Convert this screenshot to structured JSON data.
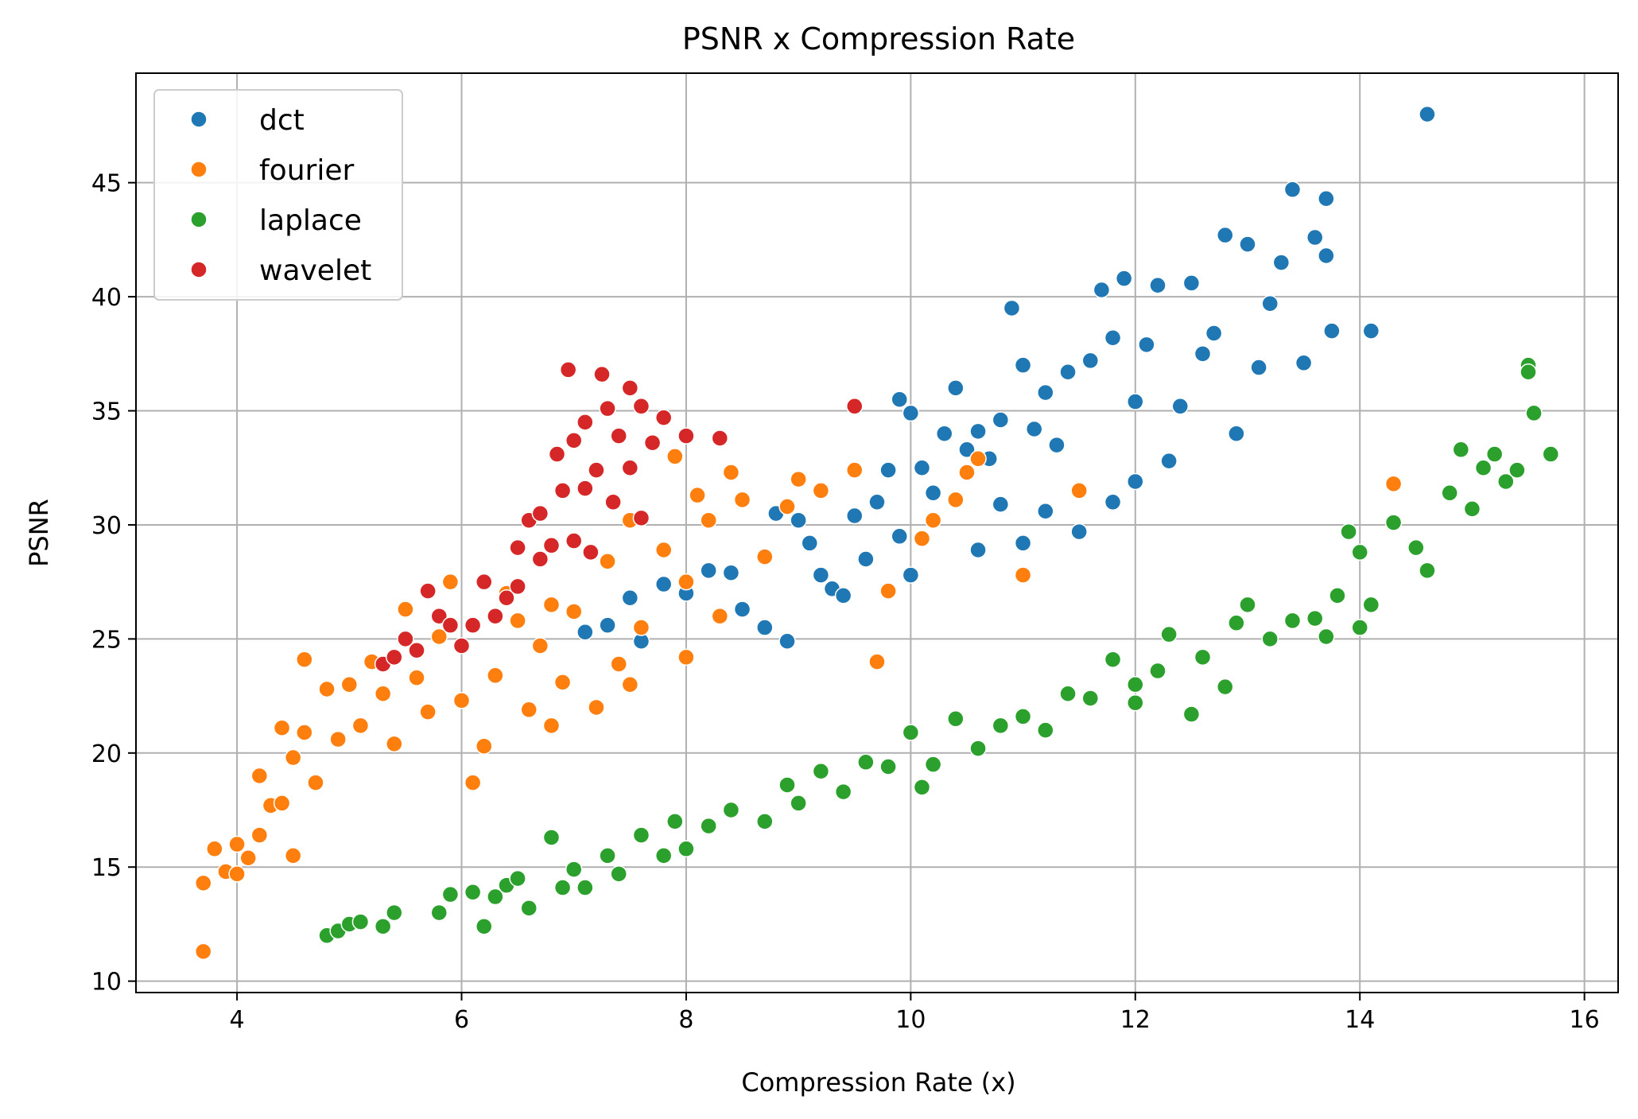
{
  "chart_data": {
    "type": "scatter",
    "title": "PSNR x Compression Rate",
    "xlabel": "Compression Rate (x)",
    "ylabel": "PSNR",
    "xlim": [
      3.1,
      16.3
    ],
    "ylim": [
      9.5,
      49.8
    ],
    "xticks": [
      4,
      6,
      8,
      10,
      12,
      14,
      16
    ],
    "yticks": [
      10,
      15,
      20,
      25,
      30,
      35,
      40,
      45
    ],
    "grid": true,
    "legend_position": "top-left",
    "series": [
      {
        "name": "dct",
        "color": "#1f77b4",
        "points": [
          [
            7.1,
            25.3
          ],
          [
            7.3,
            25.6
          ],
          [
            7.5,
            26.8
          ],
          [
            7.6,
            24.9
          ],
          [
            7.8,
            27.4
          ],
          [
            8.0,
            27.0
          ],
          [
            8.2,
            28.0
          ],
          [
            8.4,
            27.9
          ],
          [
            8.5,
            26.3
          ],
          [
            8.7,
            25.5
          ],
          [
            8.9,
            24.9
          ],
          [
            8.8,
            30.5
          ],
          [
            9.0,
            30.2
          ],
          [
            9.1,
            29.2
          ],
          [
            9.2,
            27.8
          ],
          [
            9.3,
            27.2
          ],
          [
            9.4,
            26.9
          ],
          [
            9.5,
            30.4
          ],
          [
            9.6,
            28.5
          ],
          [
            9.7,
            31.0
          ],
          [
            9.8,
            32.4
          ],
          [
            9.9,
            35.5
          ],
          [
            10.0,
            34.9
          ],
          [
            10.1,
            32.5
          ],
          [
            10.2,
            31.4
          ],
          [
            10.3,
            34.0
          ],
          [
            10.4,
            36.0
          ],
          [
            10.5,
            33.3
          ],
          [
            10.6,
            34.1
          ],
          [
            10.7,
            32.9
          ],
          [
            10.8,
            34.6
          ],
          [
            10.9,
            39.5
          ],
          [
            11.0,
            37.0
          ],
          [
            11.0,
            29.2
          ],
          [
            11.1,
            34.2
          ],
          [
            11.2,
            35.8
          ],
          [
            11.3,
            33.5
          ],
          [
            11.4,
            36.7
          ],
          [
            11.5,
            29.7
          ],
          [
            11.6,
            37.2
          ],
          [
            11.7,
            40.3
          ],
          [
            11.8,
            38.2
          ],
          [
            11.9,
            40.8
          ],
          [
            12.0,
            35.4
          ],
          [
            12.1,
            37.9
          ],
          [
            12.2,
            40.5
          ],
          [
            12.3,
            32.8
          ],
          [
            12.4,
            35.2
          ],
          [
            12.5,
            40.6
          ],
          [
            12.6,
            37.5
          ],
          [
            12.7,
            38.4
          ],
          [
            12.8,
            42.7
          ],
          [
            12.9,
            34.0
          ],
          [
            13.0,
            42.3
          ],
          [
            13.1,
            36.9
          ],
          [
            13.2,
            39.7
          ],
          [
            13.3,
            41.5
          ],
          [
            13.4,
            44.7
          ],
          [
            13.5,
            37.1
          ],
          [
            13.6,
            42.6
          ],
          [
            13.7,
            44.3
          ],
          [
            13.7,
            41.8
          ],
          [
            13.75,
            38.5
          ],
          [
            14.1,
            38.5
          ],
          [
            14.6,
            48.0
          ],
          [
            10.0,
            27.8
          ],
          [
            10.6,
            28.9
          ],
          [
            11.2,
            30.6
          ],
          [
            11.8,
            31.0
          ],
          [
            12.0,
            31.9
          ],
          [
            10.8,
            30.9
          ],
          [
            9.9,
            29.5
          ]
        ]
      },
      {
        "name": "fourier",
        "color": "#ff7f0e",
        "points": [
          [
            3.7,
            11.3
          ],
          [
            3.7,
            14.3
          ],
          [
            3.8,
            15.8
          ],
          [
            3.9,
            14.8
          ],
          [
            4.0,
            16.0
          ],
          [
            4.0,
            14.7
          ],
          [
            4.1,
            15.4
          ],
          [
            4.2,
            16.4
          ],
          [
            4.2,
            19.0
          ],
          [
            4.3,
            17.7
          ],
          [
            4.4,
            17.8
          ],
          [
            4.5,
            15.5
          ],
          [
            4.4,
            21.1
          ],
          [
            4.5,
            19.8
          ],
          [
            4.6,
            20.9
          ],
          [
            4.7,
            18.7
          ],
          [
            4.6,
            24.1
          ],
          [
            4.8,
            22.8
          ],
          [
            4.9,
            20.6
          ],
          [
            5.0,
            23.0
          ],
          [
            5.1,
            21.2
          ],
          [
            5.2,
            24.0
          ],
          [
            5.3,
            22.6
          ],
          [
            5.4,
            20.4
          ],
          [
            5.5,
            26.3
          ],
          [
            5.6,
            23.3
          ],
          [
            5.7,
            21.8
          ],
          [
            5.8,
            25.1
          ],
          [
            5.9,
            27.5
          ],
          [
            6.0,
            22.3
          ],
          [
            6.1,
            18.7
          ],
          [
            6.2,
            20.3
          ],
          [
            6.3,
            23.4
          ],
          [
            6.4,
            27.0
          ],
          [
            6.5,
            25.8
          ],
          [
            6.6,
            21.9
          ],
          [
            6.7,
            24.7
          ],
          [
            6.8,
            21.2
          ],
          [
            6.9,
            23.1
          ],
          [
            7.0,
            26.2
          ],
          [
            7.2,
            22.0
          ],
          [
            7.3,
            28.4
          ],
          [
            7.4,
            23.9
          ],
          [
            7.5,
            30.2
          ],
          [
            7.6,
            25.5
          ],
          [
            7.8,
            28.9
          ],
          [
            7.9,
            33.0
          ],
          [
            8.0,
            27.5
          ],
          [
            8.1,
            31.3
          ],
          [
            8.2,
            30.2
          ],
          [
            8.3,
            26.0
          ],
          [
            8.4,
            32.3
          ],
          [
            8.5,
            31.1
          ],
          [
            8.7,
            28.6
          ],
          [
            8.9,
            30.8
          ],
          [
            9.0,
            32.0
          ],
          [
            9.2,
            31.5
          ],
          [
            9.5,
            32.4
          ],
          [
            9.7,
            24.0
          ],
          [
            9.8,
            27.1
          ],
          [
            10.1,
            29.4
          ],
          [
            10.2,
            30.2
          ],
          [
            10.4,
            31.1
          ],
          [
            10.5,
            32.3
          ],
          [
            10.6,
            32.9
          ],
          [
            11.0,
            27.8
          ],
          [
            11.5,
            31.5
          ],
          [
            14.3,
            31.8
          ],
          [
            10.1,
            18.5
          ],
          [
            8.0,
            24.2
          ],
          [
            7.5,
            23.0
          ],
          [
            6.8,
            26.5
          ]
        ]
      },
      {
        "name": "laplace",
        "color": "#2ca02c",
        "points": [
          [
            4.8,
            12.0
          ],
          [
            4.9,
            12.2
          ],
          [
            5.0,
            12.5
          ],
          [
            5.1,
            12.6
          ],
          [
            5.3,
            12.4
          ],
          [
            5.4,
            13.0
          ],
          [
            5.8,
            13.0
          ],
          [
            5.9,
            13.8
          ],
          [
            6.1,
            13.9
          ],
          [
            6.2,
            12.4
          ],
          [
            6.3,
            13.7
          ],
          [
            6.4,
            14.2
          ],
          [
            6.5,
            14.5
          ],
          [
            6.6,
            13.2
          ],
          [
            6.8,
            16.3
          ],
          [
            6.9,
            14.1
          ],
          [
            7.0,
            14.9
          ],
          [
            7.1,
            14.1
          ],
          [
            7.3,
            15.5
          ],
          [
            7.4,
            14.7
          ],
          [
            7.6,
            16.4
          ],
          [
            7.8,
            15.5
          ],
          [
            7.9,
            17.0
          ],
          [
            8.0,
            15.8
          ],
          [
            8.2,
            16.8
          ],
          [
            8.4,
            17.5
          ],
          [
            8.7,
            17.0
          ],
          [
            8.9,
            18.6
          ],
          [
            9.0,
            17.8
          ],
          [
            9.2,
            19.2
          ],
          [
            9.4,
            18.3
          ],
          [
            9.6,
            19.6
          ],
          [
            9.8,
            19.4
          ],
          [
            10.0,
            20.9
          ],
          [
            10.2,
            19.5
          ],
          [
            10.4,
            21.5
          ],
          [
            10.6,
            20.2
          ],
          [
            10.8,
            21.2
          ],
          [
            11.0,
            21.6
          ],
          [
            11.2,
            21.0
          ],
          [
            11.4,
            22.6
          ],
          [
            11.6,
            22.4
          ],
          [
            11.8,
            24.1
          ],
          [
            12.0,
            23.0
          ],
          [
            12.2,
            23.6
          ],
          [
            12.3,
            25.2
          ],
          [
            12.5,
            21.7
          ],
          [
            12.6,
            24.2
          ],
          [
            12.8,
            22.9
          ],
          [
            12.9,
            25.7
          ],
          [
            13.0,
            26.5
          ],
          [
            13.2,
            25.0
          ],
          [
            13.4,
            25.8
          ],
          [
            13.6,
            25.9
          ],
          [
            13.8,
            26.9
          ],
          [
            13.9,
            29.7
          ],
          [
            14.0,
            28.8
          ],
          [
            14.1,
            26.5
          ],
          [
            14.3,
            30.1
          ],
          [
            14.5,
            29.0
          ],
          [
            14.6,
            28.0
          ],
          [
            14.8,
            31.4
          ],
          [
            14.9,
            33.3
          ],
          [
            15.0,
            30.7
          ],
          [
            15.1,
            32.5
          ],
          [
            15.2,
            33.1
          ],
          [
            15.3,
            31.9
          ],
          [
            15.4,
            32.4
          ],
          [
            15.5,
            37.0
          ],
          [
            15.5,
            36.7
          ],
          [
            15.55,
            34.9
          ],
          [
            15.7,
            33.1
          ],
          [
            14.0,
            25.5
          ],
          [
            12.0,
            22.2
          ],
          [
            10.1,
            18.5
          ],
          [
            13.7,
            25.1
          ]
        ]
      },
      {
        "name": "wavelet",
        "color": "#d62728",
        "points": [
          [
            5.3,
            23.9
          ],
          [
            5.4,
            24.2
          ],
          [
            5.5,
            25.0
          ],
          [
            5.6,
            24.5
          ],
          [
            5.7,
            27.1
          ],
          [
            5.8,
            26.0
          ],
          [
            5.9,
            25.6
          ],
          [
            6.0,
            24.7
          ],
          [
            6.1,
            25.6
          ],
          [
            6.2,
            27.5
          ],
          [
            6.3,
            26.0
          ],
          [
            6.4,
            26.8
          ],
          [
            6.5,
            29.0
          ],
          [
            6.6,
            30.2
          ],
          [
            6.7,
            30.5
          ],
          [
            6.8,
            29.1
          ],
          [
            6.85,
            33.1
          ],
          [
            6.9,
            31.5
          ],
          [
            6.95,
            36.8
          ],
          [
            7.0,
            33.7
          ],
          [
            7.0,
            29.3
          ],
          [
            7.1,
            34.5
          ],
          [
            7.15,
            28.8
          ],
          [
            7.2,
            32.4
          ],
          [
            7.25,
            36.6
          ],
          [
            7.3,
            35.1
          ],
          [
            7.35,
            31.0
          ],
          [
            7.4,
            33.9
          ],
          [
            7.5,
            36.0
          ],
          [
            7.5,
            32.5
          ],
          [
            7.6,
            35.2
          ],
          [
            7.6,
            30.3
          ],
          [
            7.7,
            33.6
          ],
          [
            7.8,
            34.7
          ],
          [
            8.0,
            33.9
          ],
          [
            8.3,
            33.8
          ],
          [
            9.5,
            35.2
          ],
          [
            6.5,
            27.3
          ],
          [
            6.7,
            28.5
          ],
          [
            7.1,
            31.6
          ]
        ]
      }
    ]
  }
}
